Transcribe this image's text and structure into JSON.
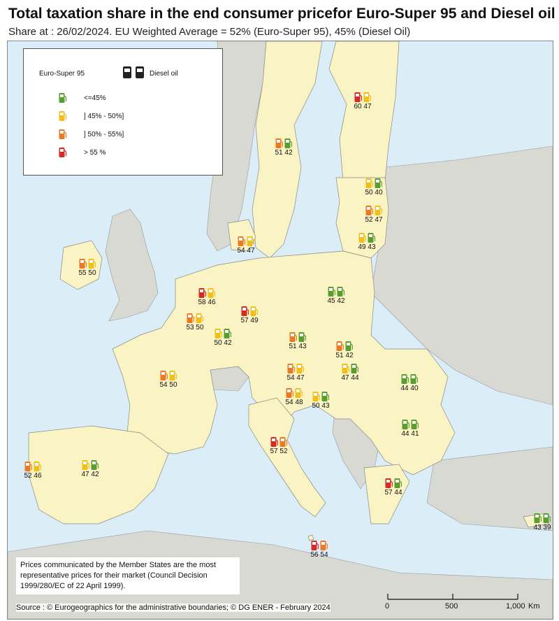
{
  "title": "Total taxation share in the end consumer pricefor Euro-Super 95 and Diesel oil",
  "subtitle": "Share at : 26/02/2024. EU Weighted Average = 52% (Euro-Super 95), 45% (Diesel Oil)",
  "legend": {
    "euro_label": "Euro-Super 95",
    "diesel_label": "Diesel oil",
    "classes": [
      {
        "label": "<=45%",
        "color": "#5a9e32"
      },
      {
        "label": "] 45% - 50%]",
        "color": "#f1bf1c"
      },
      {
        "label": "] 50% - 55%]",
        "color": "#ec7a25"
      },
      {
        "label": "> 55 %",
        "color": "#d62a24"
      }
    ]
  },
  "countries": [
    {
      "id": "finland",
      "euro": 60,
      "diesel": 47
    },
    {
      "id": "sweden",
      "euro": 51,
      "diesel": 42
    },
    {
      "id": "estonia",
      "euro": 50,
      "diesel": 40
    },
    {
      "id": "latvia",
      "euro": 52,
      "diesel": 47
    },
    {
      "id": "lithuania",
      "euro": 49,
      "diesel": 43
    },
    {
      "id": "denmark",
      "euro": 54,
      "diesel": 47
    },
    {
      "id": "ireland",
      "euro": 55,
      "diesel": 50
    },
    {
      "id": "netherlands",
      "euro": 58,
      "diesel": 46
    },
    {
      "id": "germany",
      "euro": 57,
      "diesel": 49
    },
    {
      "id": "poland",
      "euro": 45,
      "diesel": 42
    },
    {
      "id": "belgium",
      "euro": 53,
      "diesel": 50
    },
    {
      "id": "luxembourg",
      "euro": 50,
      "diesel": 42
    },
    {
      "id": "czechia",
      "euro": 51,
      "diesel": 43
    },
    {
      "id": "slovakia",
      "euro": 51,
      "diesel": 42
    },
    {
      "id": "france",
      "euro": 54,
      "diesel": 50
    },
    {
      "id": "austria",
      "euro": 54,
      "diesel": 47
    },
    {
      "id": "hungary",
      "euro": 47,
      "diesel": 44
    },
    {
      "id": "romania",
      "euro": 44,
      "diesel": 40
    },
    {
      "id": "slovenia",
      "euro": 54,
      "diesel": 48
    },
    {
      "id": "croatia",
      "euro": 50,
      "diesel": 43
    },
    {
      "id": "bulgaria",
      "euro": 44,
      "diesel": 41
    },
    {
      "id": "italy",
      "euro": 57,
      "diesel": 52
    },
    {
      "id": "portugal",
      "euro": 52,
      "diesel": 46
    },
    {
      "id": "spain",
      "euro": 47,
      "diesel": 42
    },
    {
      "id": "greece",
      "euro": 57,
      "diesel": 44
    },
    {
      "id": "cyprus",
      "euro": 43,
      "diesel": 39
    },
    {
      "id": "malta",
      "euro": 56,
      "diesel": 54
    }
  ],
  "note": "Prices communicated by the Member States are the most representative prices for their market (Council Decision 1999/280/EC of 22 April 1999).",
  "source": "Source : © Eurogeographics for the administrative boundaries;  © DG ENER - February 2024",
  "scale": {
    "ticks": [
      "0",
      "500",
      "1,000"
    ],
    "unit": "Km"
  }
}
